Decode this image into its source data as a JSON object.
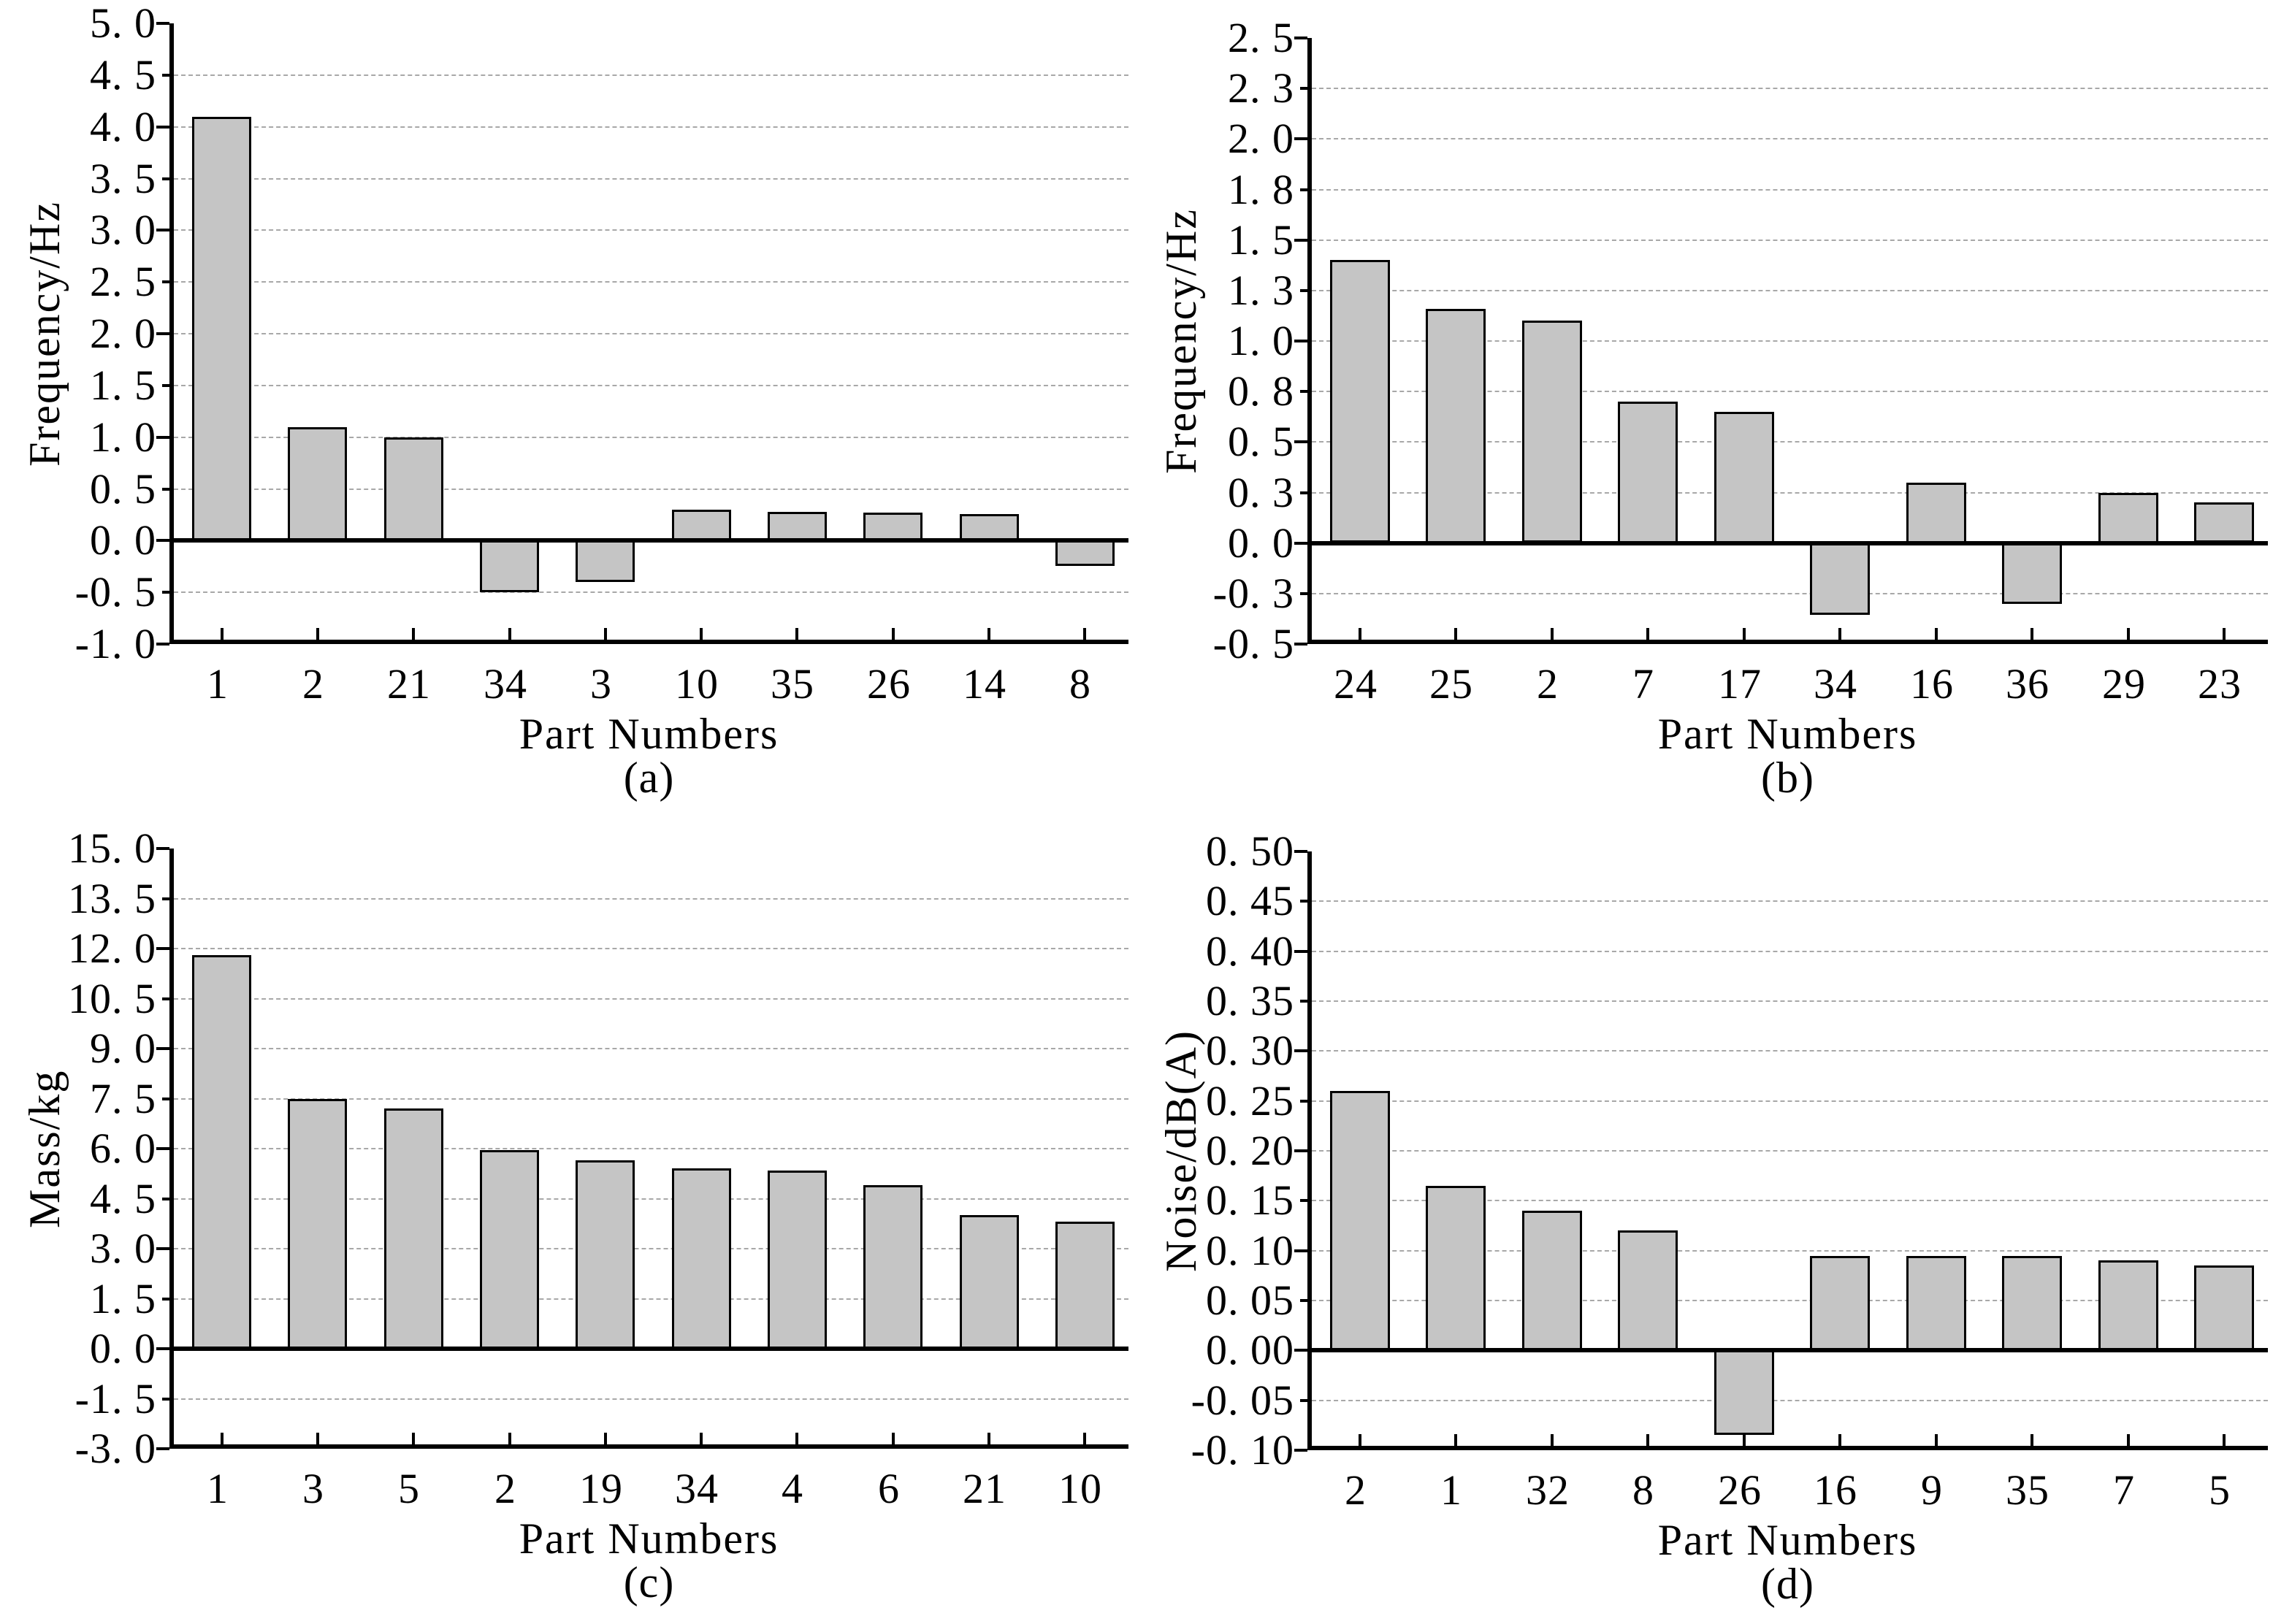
{
  "style": {
    "background": "#ffffff",
    "bar_fill": "#c5c5c5",
    "bar_edge": "#000000",
    "grid_color": "#a8a8a8",
    "axis_color": "#000000"
  },
  "chart_data": [
    {
      "id": "a",
      "type": "bar",
      "title": "(a)",
      "xlabel": "Part Numbers",
      "ylabel": "Frequency/Hz",
      "categories": [
        "1",
        "2",
        "21",
        "34",
        "3",
        "10",
        "35",
        "26",
        "14",
        "8"
      ],
      "values": [
        4.1,
        1.1,
        1.0,
        -0.5,
        -0.4,
        0.3,
        0.28,
        0.27,
        0.26,
        -0.25
      ],
      "ylim": [
        -1.0,
        5.0
      ],
      "ytick_step": 0.5,
      "yticks": [
        5.0,
        4.5,
        4.0,
        3.5,
        3.0,
        2.5,
        2.0,
        1.5,
        1.0,
        0.5,
        0.0,
        -0.5,
        -1.0
      ],
      "ytick_labels": [
        "5. 0",
        "4. 5",
        "4. 0",
        "3. 5",
        "3. 0",
        "2. 5",
        "2. 0",
        "1. 5",
        "1. 0",
        "0. 5",
        "0. 0",
        "-0. 5",
        "-1. 0"
      ],
      "grid": "horizontal-dashed",
      "legend": "none"
    },
    {
      "id": "b",
      "type": "bar",
      "title": "(b)",
      "xlabel": "Part Numbers",
      "ylabel": "Frequency/Hz",
      "categories": [
        "24",
        "25",
        "2",
        "7",
        "17",
        "34",
        "16",
        "36",
        "29",
        "23"
      ],
      "values": [
        1.4,
        1.16,
        1.1,
        0.7,
        0.65,
        -0.355,
        0.3,
        -0.3,
        0.25,
        0.2
      ],
      "ylim": [
        -0.5,
        2.5
      ],
      "ytick_step": 0.25,
      "yticks": [
        2.5,
        2.25,
        2.0,
        1.75,
        1.5,
        1.25,
        1.0,
        0.75,
        0.5,
        0.25,
        0.0,
        -0.25,
        -0.5
      ],
      "ytick_labels": [
        "2. 5",
        "2. 3",
        "2. 0",
        "1. 8",
        "1. 5",
        "1. 3",
        "1. 0",
        "0. 8",
        "0. 5",
        "0. 3",
        "0. 0",
        "-0. 3",
        "-0. 5"
      ],
      "grid": "horizontal-dashed",
      "legend": "none"
    },
    {
      "id": "c",
      "type": "bar",
      "title": "(c)",
      "xlabel": "Part Numbers",
      "ylabel": "Mass/kg",
      "categories": [
        "1",
        "3",
        "5",
        "2",
        "19",
        "34",
        "4",
        "6",
        "21",
        "10"
      ],
      "values": [
        11.8,
        7.5,
        7.2,
        5.95,
        5.65,
        5.4,
        5.35,
        4.9,
        4.0,
        3.8
      ],
      "ylim": [
        -3.0,
        15.0
      ],
      "ytick_step": 1.5,
      "yticks": [
        15.0,
        13.5,
        12.0,
        10.5,
        9.0,
        7.5,
        6.0,
        4.5,
        3.0,
        1.5,
        0.0,
        -1.5,
        -3.0
      ],
      "ytick_labels": [
        "15. 0",
        "13. 5",
        "12. 0",
        "10. 5",
        "9. 0",
        "7. 5",
        "6. 0",
        "4. 5",
        "3. 0",
        "1. 5",
        "0. 0",
        "-1. 5",
        "-3. 0"
      ],
      "grid": "horizontal-dashed",
      "legend": "none"
    },
    {
      "id": "d",
      "type": "bar",
      "title": "(d)",
      "xlabel": "Part Numbers",
      "ylabel": "Noise/dB(A)",
      "categories": [
        "2",
        "1",
        "32",
        "8",
        "26",
        "16",
        "9",
        "35",
        "7",
        "5"
      ],
      "values": [
        0.26,
        0.165,
        0.14,
        0.12,
        -0.085,
        0.095,
        0.095,
        0.095,
        0.09,
        0.085
      ],
      "ylim": [
        -0.1,
        0.5
      ],
      "ytick_step": 0.05,
      "yticks": [
        0.5,
        0.45,
        0.4,
        0.35,
        0.3,
        0.25,
        0.2,
        0.15,
        0.1,
        0.05,
        0.0,
        -0.05,
        -0.1
      ],
      "ytick_labels": [
        "0. 50",
        "0. 45",
        "0. 40",
        "0. 35",
        "0. 30",
        "0. 25",
        "0. 20",
        "0. 15",
        "0. 10",
        "0. 05",
        "0. 00",
        "-0. 05",
        "-0. 10"
      ],
      "grid": "horizontal-dashed",
      "legend": "none"
    }
  ]
}
